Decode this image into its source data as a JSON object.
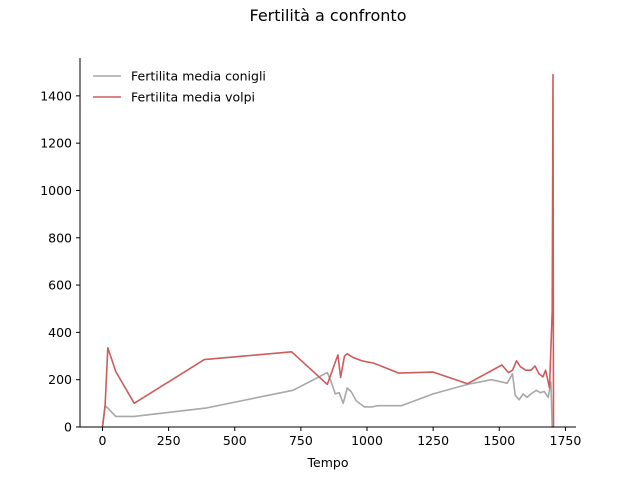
{
  "chart_data": {
    "type": "line",
    "title": "Fertilità a confronto",
    "xlabel": "Tempo",
    "ylabel": "",
    "xlim": [
      -85,
      1790
    ],
    "ylim": [
      0,
      1560
    ],
    "xticks": [
      0,
      250,
      500,
      750,
      1000,
      1250,
      1500,
      1750
    ],
    "yticks": [
      0,
      200,
      400,
      600,
      800,
      1000,
      1200,
      1400
    ],
    "grid": false,
    "legend_position": "top-left",
    "series": [
      {
        "name": "Fertilita media conigli",
        "color": "#a9a7a7",
        "x": [
          0,
          10,
          20,
          50,
          120,
          390,
          720,
          850,
          865,
          880,
          895,
          910,
          925,
          940,
          960,
          990,
          1020,
          1040,
          1060,
          1080,
          1100,
          1130,
          1250,
          1380,
          1470,
          1530,
          1550,
          1560,
          1575,
          1590,
          1605,
          1620,
          1640,
          1655,
          1670,
          1685,
          1695,
          1700,
          1703,
          1705
        ],
        "y": [
          0,
          90,
          80,
          45,
          45,
          80,
          155,
          230,
          190,
          140,
          145,
          100,
          165,
          150,
          110,
          85,
          85,
          90,
          90,
          90,
          90,
          90,
          140,
          180,
          200,
          185,
          225,
          135,
          115,
          140,
          125,
          140,
          155,
          145,
          150,
          125,
          190,
          0,
          0,
          0
        ]
      },
      {
        "name": "Fertilita media volpi",
        "color": "#cd5c5c",
        "x": [
          0,
          10,
          20,
          50,
          120,
          385,
          715,
          850,
          890,
          900,
          915,
          925,
          945,
          980,
          1025,
          1120,
          1250,
          1380,
          1510,
          1535,
          1550,
          1565,
          1580,
          1600,
          1620,
          1635,
          1650,
          1665,
          1675,
          1690,
          1700,
          1703,
          1705
        ],
        "y": [
          0,
          90,
          335,
          235,
          100,
          285,
          318,
          180,
          305,
          210,
          300,
          310,
          295,
          280,
          270,
          228,
          232,
          183,
          262,
          230,
          240,
          280,
          255,
          240,
          240,
          258,
          225,
          212,
          240,
          165,
          490,
          1490,
          0
        ]
      }
    ]
  }
}
